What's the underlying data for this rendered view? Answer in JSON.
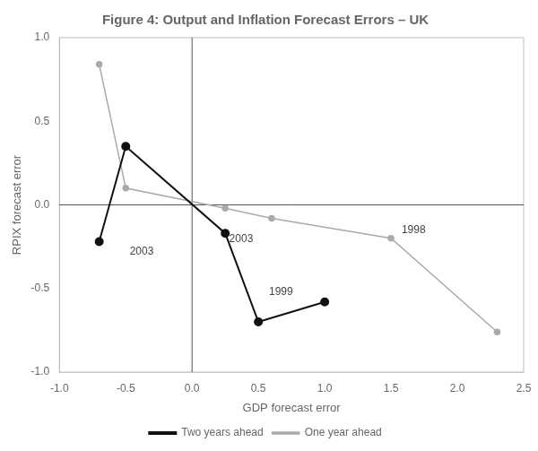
{
  "chart_data": {
    "type": "line",
    "title": "Figure 4: Output and Inflation Forecast Errors – UK",
    "x_label": "GDP forecast error",
    "y_label": "RPIX forecast error",
    "xlim": [
      -1.0,
      2.5
    ],
    "ylim": [
      -1.0,
      1.0
    ],
    "xticks": [
      {
        "value": -1,
        "label": "-1.0"
      },
      -0.5,
      {
        "value": 0,
        "label": "0.0"
      },
      0.5,
      {
        "value": 1,
        "label": "1.0"
      },
      1.5,
      {
        "value": 2,
        "label": "2.0"
      },
      2.5
    ],
    "yticks": [
      {
        "value": -1,
        "label": "-1.0"
      },
      -0.5,
      {
        "value": 0,
        "label": "0.0"
      },
      0.5,
      {
        "value": 1,
        "label": "1.0"
      }
    ],
    "grid": false,
    "legend": "bottom",
    "marker": "circle",
    "series": [
      {
        "name": "One year ahead",
        "color": "#aaaaaa",
        "x": [
          -0.7,
          -0.5,
          0.25,
          0.6,
          1.5,
          2.3
        ],
        "values": [
          0.84,
          0.1,
          -0.02,
          -0.08,
          -0.2,
          -0.76
        ]
      },
      {
        "name": "Two years ahead",
        "color": "#111111",
        "x": [
          -0.7,
          -0.5,
          0.25,
          0.5,
          1.0
        ],
        "values": [
          -0.22,
          0.35,
          -0.17,
          -0.7,
          -0.58
        ]
      }
    ],
    "annotations": [
      {
        "text": "2003",
        "x": -0.47,
        "y": -0.3,
        "color": "#444444"
      },
      {
        "text": "2003",
        "x": 0.28,
        "y": -0.22,
        "color": "#444444"
      },
      {
        "text": "1999",
        "x": 0.58,
        "y": -0.54,
        "color": "#444444"
      },
      {
        "text": "1998",
        "x": 1.58,
        "y": -0.17,
        "color": "#444444"
      }
    ]
  }
}
